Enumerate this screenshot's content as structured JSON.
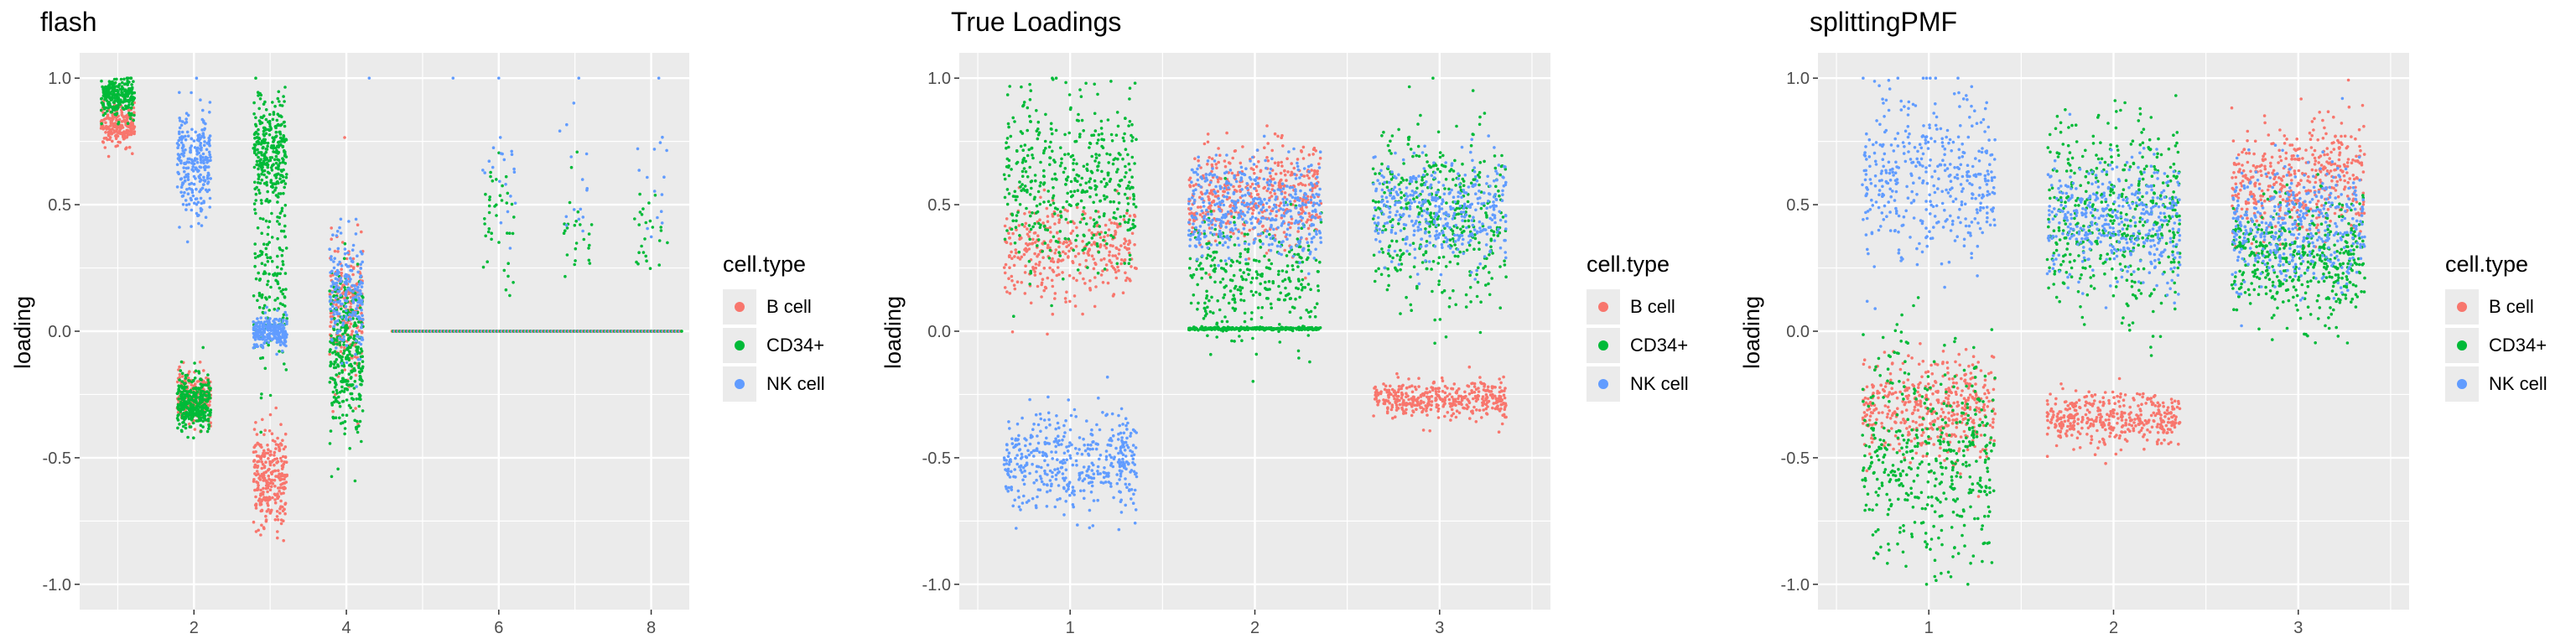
{
  "colors": {
    "b_cell": "#F8766D",
    "cd34": "#00BA38",
    "nk_cell": "#619CFF",
    "panel_bg": "#EBEBEB",
    "grid": "#FFFFFF"
  },
  "ylabel": "loading",
  "legend": {
    "title": "cell.type",
    "items": [
      "B cell",
      "CD34+",
      "NK cell"
    ]
  },
  "chart_data": [
    {
      "type": "scatter",
      "title": "flash",
      "xlabel": "",
      "ylabel": "loading",
      "xlim": [
        0.5,
        8.5
      ],
      "ylim": [
        -1.1,
        1.1
      ],
      "x_ticks": [
        2,
        4,
        6,
        8
      ],
      "y_ticks": [
        1.0,
        0.5,
        0.0,
        -0.5,
        -1.0
      ],
      "y_tick_labels": [
        "1.0",
        "0.5",
        "0.0",
        "-0.5",
        "-1.0"
      ],
      "series": [
        {
          "name": "B cell",
          "clusters": [
            {
              "x": 1,
              "mean": 0.81,
              "sd": 0.04,
              "n": 220
            },
            {
              "x": 2,
              "mean": -0.26,
              "sd": 0.05,
              "n": 220
            },
            {
              "x": 3,
              "mean": -0.58,
              "sd": 0.1,
              "n": 260
            },
            {
              "x": 4,
              "mean": 0.1,
              "sd": 0.14,
              "n": 220
            }
          ]
        },
        {
          "name": "CD34+",
          "clusters": [
            {
              "x": 1,
              "mean": 0.93,
              "sd": 0.035,
              "n": 260
            },
            {
              "x": 2,
              "mean": -0.28,
              "sd": 0.06,
              "n": 320
            },
            {
              "x": 3,
              "mean": 0.72,
              "sd": 0.1,
              "n": 280
            },
            {
              "x": 3,
              "mean": 0.25,
              "sd": 0.2,
              "n": 160
            },
            {
              "x": 4,
              "mean": -0.1,
              "sd": 0.16,
              "n": 320
            },
            {
              "x": 6,
              "mean": 0.45,
              "sd": 0.12,
              "n": 40
            },
            {
              "x": 7,
              "mean": 0.4,
              "sd": 0.12,
              "n": 25
            },
            {
              "x": 8,
              "mean": 0.4,
              "sd": 0.12,
              "n": 25
            }
          ]
        },
        {
          "name": "NK cell",
          "clusters": [
            {
              "x": 2,
              "mean": 0.66,
              "sd": 0.1,
              "n": 260
            },
            {
              "x": 3,
              "mean": 0.0,
              "sd": 0.03,
              "n": 220
            },
            {
              "x": 4,
              "mean": 0.15,
              "sd": 0.12,
              "n": 200
            },
            {
              "x": 6,
              "mean": 0.6,
              "sd": 0.12,
              "n": 20
            },
            {
              "x": 7,
              "mean": 0.55,
              "sd": 0.12,
              "n": 15
            },
            {
              "x": 8,
              "mean": 0.6,
              "sd": 0.15,
              "n": 15
            }
          ]
        }
      ],
      "zero_line_range": [
        4.6,
        8.4
      ],
      "outliers": [
        {
          "x": 4.3,
          "y": 1.0,
          "series": "NK cell"
        },
        {
          "x": 5.4,
          "y": 1.0,
          "series": "NK cell"
        },
        {
          "x": 6.0,
          "y": 1.0,
          "series": "NK cell"
        },
        {
          "x": 7.05,
          "y": 1.0,
          "series": "NK cell"
        },
        {
          "x": 8.1,
          "y": 1.0,
          "series": "NK cell"
        }
      ]
    },
    {
      "type": "scatter",
      "title": "True Loadings",
      "xlabel": "",
      "ylabel": "loading",
      "xlim": [
        0.4,
        3.6
      ],
      "ylim": [
        -1.1,
        1.1
      ],
      "x_ticks": [
        1,
        2,
        3
      ],
      "y_ticks": [
        1.0,
        0.5,
        0.0,
        -0.5,
        -1.0
      ],
      "y_tick_labels": [
        "1.0",
        "0.5",
        "0.0",
        "-0.5",
        "-1.0"
      ],
      "series": [
        {
          "name": "B cell",
          "clusters": [
            {
              "x": 1,
              "mean": 0.32,
              "sd": 0.1,
              "n": 350
            },
            {
              "x": 2,
              "mean": 0.53,
              "sd": 0.1,
              "n": 450
            },
            {
              "x": 3,
              "mean": -0.27,
              "sd": 0.035,
              "n": 400
            }
          ]
        },
        {
          "name": "CD34+",
          "clusters": [
            {
              "x": 1,
              "mean": 0.6,
              "sd": 0.17,
              "n": 450
            },
            {
              "x": 2,
              "mean": 0.01,
              "sd": 0.003,
              "n": 300
            },
            {
              "x": 2,
              "mean": 0.2,
              "sd": 0.12,
              "n": 300
            },
            {
              "x": 3,
              "mean": 0.45,
              "sd": 0.18,
              "n": 400
            }
          ]
        },
        {
          "name": "NK cell",
          "clusters": [
            {
              "x": 1,
              "mean": -0.52,
              "sd": 0.1,
              "n": 450
            },
            {
              "x": 2,
              "mean": 0.48,
              "sd": 0.1,
              "n": 450
            },
            {
              "x": 3,
              "mean": 0.48,
              "sd": 0.1,
              "n": 400
            }
          ]
        }
      ]
    },
    {
      "type": "scatter",
      "title": "splittingPMF",
      "xlabel": "",
      "ylabel": "loading",
      "xlim": [
        0.4,
        3.6
      ],
      "ylim": [
        -1.1,
        1.1
      ],
      "x_ticks": [
        1,
        2,
        3
      ],
      "y_ticks": [
        1.0,
        0.5,
        0.0,
        -0.5,
        -1.0
      ],
      "y_tick_labels": [
        "1.0",
        "0.5",
        "0.0",
        "-0.5",
        "-1.0"
      ],
      "series": [
        {
          "name": "B cell",
          "clusters": [
            {
              "x": 1,
              "mean": -0.3,
              "sd": 0.1,
              "n": 450
            },
            {
              "x": 2,
              "mean": -0.35,
              "sd": 0.05,
              "n": 400
            },
            {
              "x": 3,
              "mean": 0.6,
              "sd": 0.12,
              "n": 450
            }
          ]
        },
        {
          "name": "CD34+",
          "clusters": [
            {
              "x": 1,
              "mean": -0.5,
              "sd": 0.22,
              "n": 450
            },
            {
              "x": 2,
              "mean": 0.45,
              "sd": 0.2,
              "n": 450
            },
            {
              "x": 3,
              "mean": 0.28,
              "sd": 0.12,
              "n": 450
            }
          ]
        },
        {
          "name": "NK cell",
          "clusters": [
            {
              "x": 1,
              "mean": 0.6,
              "sd": 0.17,
              "n": 420
            },
            {
              "x": 2,
              "mean": 0.45,
              "sd": 0.12,
              "n": 420
            },
            {
              "x": 3,
              "mean": 0.42,
              "sd": 0.12,
              "n": 420
            }
          ]
        }
      ]
    }
  ]
}
